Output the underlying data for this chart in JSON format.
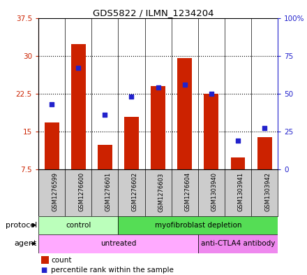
{
  "title": "GDS5822 / ILMN_1234204",
  "samples": [
    "GSM1276599",
    "GSM1276600",
    "GSM1276601",
    "GSM1276602",
    "GSM1276603",
    "GSM1276604",
    "GSM1303940",
    "GSM1303941",
    "GSM1303942"
  ],
  "counts": [
    16.8,
    32.3,
    12.3,
    17.8,
    24.0,
    29.5,
    22.5,
    9.8,
    13.8
  ],
  "percentiles": [
    43,
    67,
    36,
    48,
    54,
    56,
    50,
    19,
    27
  ],
  "ylim_left": [
    7.5,
    37.5
  ],
  "ylim_right": [
    0,
    100
  ],
  "yticks_left": [
    7.5,
    15.0,
    22.5,
    30.0,
    37.5
  ],
  "yticks_right": [
    0,
    25,
    50,
    75,
    100
  ],
  "ytick_labels_left": [
    "7.5",
    "15",
    "22.5",
    "30",
    "37.5"
  ],
  "ytick_labels_right": [
    "0",
    "25",
    "50",
    "75",
    "100%"
  ],
  "bar_color": "#cc2200",
  "dot_color": "#2222cc",
  "bar_bottom": 7.5,
  "protocol_groups": [
    {
      "label": "control",
      "start": 0,
      "end": 3,
      "color": "#bbffbb"
    },
    {
      "label": "myofibroblast depletion",
      "start": 3,
      "end": 9,
      "color": "#55dd55"
    }
  ],
  "agent_groups": [
    {
      "label": "untreated",
      "start": 0,
      "end": 6,
      "color": "#ffaaff"
    },
    {
      "label": "anti-CTLA4 antibody",
      "start": 6,
      "end": 9,
      "color": "#ee88ee"
    }
  ],
  "legend_count_label": "count",
  "legend_pct_label": "percentile rank within the sample",
  "background_color": "#ffffff",
  "plot_bg_color": "#ffffff",
  "sample_bg_color": "#cccccc",
  "bar_width": 0.55
}
